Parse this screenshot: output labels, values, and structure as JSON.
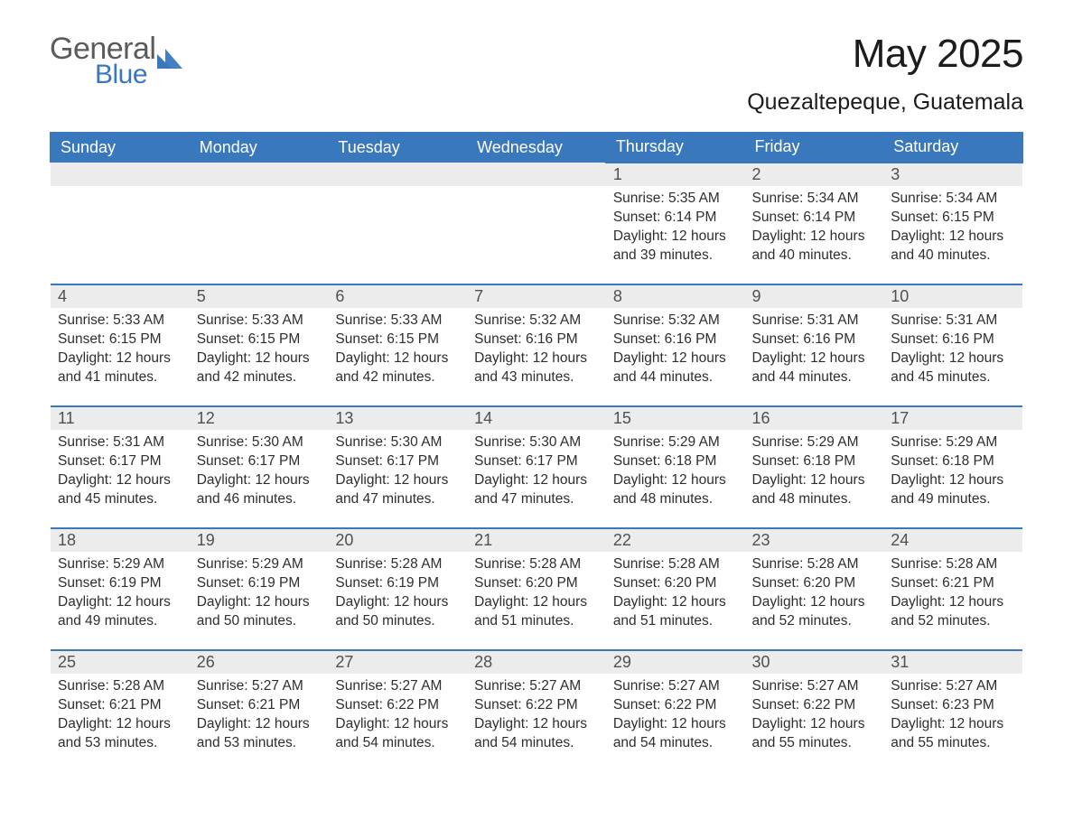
{
  "logo": {
    "text_general": "General",
    "text_blue": "Blue",
    "icon_color": "#3a78be"
  },
  "header": {
    "month_title": "May 2025",
    "location": "Quezaltepeque, Guatemala"
  },
  "theme": {
    "primary_color": "#3a78be",
    "header_text_color": "#ffffff",
    "day_number_bg": "#ececec",
    "day_number_color": "#505050",
    "body_text_color": "#2e2e2e",
    "background": "#ffffff"
  },
  "calendar": {
    "weekdays": [
      "Sunday",
      "Monday",
      "Tuesday",
      "Wednesday",
      "Thursday",
      "Friday",
      "Saturday"
    ],
    "first_weekday_index": 4,
    "days": [
      {
        "n": 1,
        "sunrise": "5:35 AM",
        "sunset": "6:14 PM",
        "daylight": "12 hours and 39 minutes."
      },
      {
        "n": 2,
        "sunrise": "5:34 AM",
        "sunset": "6:14 PM",
        "daylight": "12 hours and 40 minutes."
      },
      {
        "n": 3,
        "sunrise": "5:34 AM",
        "sunset": "6:15 PM",
        "daylight": "12 hours and 40 minutes."
      },
      {
        "n": 4,
        "sunrise": "5:33 AM",
        "sunset": "6:15 PM",
        "daylight": "12 hours and 41 minutes."
      },
      {
        "n": 5,
        "sunrise": "5:33 AM",
        "sunset": "6:15 PM",
        "daylight": "12 hours and 42 minutes."
      },
      {
        "n": 6,
        "sunrise": "5:33 AM",
        "sunset": "6:15 PM",
        "daylight": "12 hours and 42 minutes."
      },
      {
        "n": 7,
        "sunrise": "5:32 AM",
        "sunset": "6:16 PM",
        "daylight": "12 hours and 43 minutes."
      },
      {
        "n": 8,
        "sunrise": "5:32 AM",
        "sunset": "6:16 PM",
        "daylight": "12 hours and 44 minutes."
      },
      {
        "n": 9,
        "sunrise": "5:31 AM",
        "sunset": "6:16 PM",
        "daylight": "12 hours and 44 minutes."
      },
      {
        "n": 10,
        "sunrise": "5:31 AM",
        "sunset": "6:16 PM",
        "daylight": "12 hours and 45 minutes."
      },
      {
        "n": 11,
        "sunrise": "5:31 AM",
        "sunset": "6:17 PM",
        "daylight": "12 hours and 45 minutes."
      },
      {
        "n": 12,
        "sunrise": "5:30 AM",
        "sunset": "6:17 PM",
        "daylight": "12 hours and 46 minutes."
      },
      {
        "n": 13,
        "sunrise": "5:30 AM",
        "sunset": "6:17 PM",
        "daylight": "12 hours and 47 minutes."
      },
      {
        "n": 14,
        "sunrise": "5:30 AM",
        "sunset": "6:17 PM",
        "daylight": "12 hours and 47 minutes."
      },
      {
        "n": 15,
        "sunrise": "5:29 AM",
        "sunset": "6:18 PM",
        "daylight": "12 hours and 48 minutes."
      },
      {
        "n": 16,
        "sunrise": "5:29 AM",
        "sunset": "6:18 PM",
        "daylight": "12 hours and 48 minutes."
      },
      {
        "n": 17,
        "sunrise": "5:29 AM",
        "sunset": "6:18 PM",
        "daylight": "12 hours and 49 minutes."
      },
      {
        "n": 18,
        "sunrise": "5:29 AM",
        "sunset": "6:19 PM",
        "daylight": "12 hours and 49 minutes."
      },
      {
        "n": 19,
        "sunrise": "5:29 AM",
        "sunset": "6:19 PM",
        "daylight": "12 hours and 50 minutes."
      },
      {
        "n": 20,
        "sunrise": "5:28 AM",
        "sunset": "6:19 PM",
        "daylight": "12 hours and 50 minutes."
      },
      {
        "n": 21,
        "sunrise": "5:28 AM",
        "sunset": "6:20 PM",
        "daylight": "12 hours and 51 minutes."
      },
      {
        "n": 22,
        "sunrise": "5:28 AM",
        "sunset": "6:20 PM",
        "daylight": "12 hours and 51 minutes."
      },
      {
        "n": 23,
        "sunrise": "5:28 AM",
        "sunset": "6:20 PM",
        "daylight": "12 hours and 52 minutes."
      },
      {
        "n": 24,
        "sunrise": "5:28 AM",
        "sunset": "6:21 PM",
        "daylight": "12 hours and 52 minutes."
      },
      {
        "n": 25,
        "sunrise": "5:28 AM",
        "sunset": "6:21 PM",
        "daylight": "12 hours and 53 minutes."
      },
      {
        "n": 26,
        "sunrise": "5:27 AM",
        "sunset": "6:21 PM",
        "daylight": "12 hours and 53 minutes."
      },
      {
        "n": 27,
        "sunrise": "5:27 AM",
        "sunset": "6:22 PM",
        "daylight": "12 hours and 54 minutes."
      },
      {
        "n": 28,
        "sunrise": "5:27 AM",
        "sunset": "6:22 PM",
        "daylight": "12 hours and 54 minutes."
      },
      {
        "n": 29,
        "sunrise": "5:27 AM",
        "sunset": "6:22 PM",
        "daylight": "12 hours and 54 minutes."
      },
      {
        "n": 30,
        "sunrise": "5:27 AM",
        "sunset": "6:22 PM",
        "daylight": "12 hours and 55 minutes."
      },
      {
        "n": 31,
        "sunrise": "5:27 AM",
        "sunset": "6:23 PM",
        "daylight": "12 hours and 55 minutes."
      }
    ],
    "labels": {
      "sunrise": "Sunrise:",
      "sunset": "Sunset:",
      "daylight": "Daylight:"
    }
  }
}
